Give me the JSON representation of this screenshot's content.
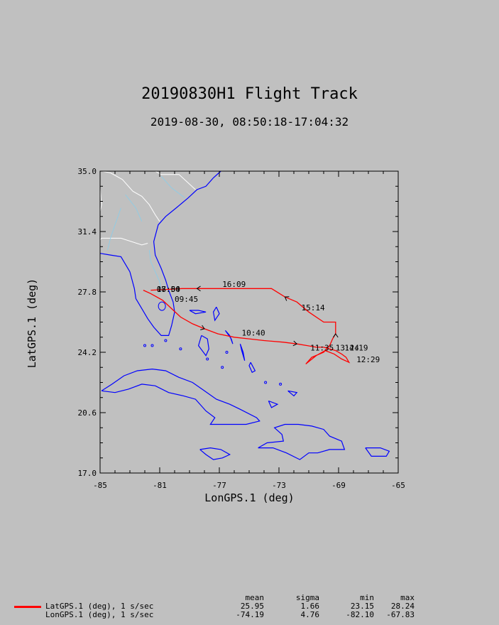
{
  "title": "20190830H1 Flight Track",
  "subtitle": "2019-08-30, 08:50:18-17:04:32",
  "colors": {
    "background": "#c0c0c0",
    "track": "#ff0000",
    "coast": "#0000ff",
    "border": "#ffffff",
    "rivers": "#87ceeb"
  },
  "chart_data": {
    "type": "line",
    "title": "20190830H1 Flight Track",
    "subtitle": "2019-08-30, 08:50:18-17:04:32",
    "xlabel": "LonGPS.1 (deg)",
    "ylabel": "LatGPS.1 (deg)",
    "xlim": [
      -85,
      -65
    ],
    "ylim": [
      17.0,
      35.0
    ],
    "xticks": [
      "-85",
      "-81",
      "-77",
      "-73",
      "-69",
      "-65"
    ],
    "yticks": [
      "17.0",
      "20.6",
      "24.2",
      "27.8",
      "31.4",
      "35.0"
    ],
    "series": [
      {
        "name": "LatGPS.1 (deg), 1 s/sec",
        "x": [
          -82.1,
          -81.6,
          -80.8,
          -80.2,
          -79.6,
          -78.8,
          -78.0,
          -77.1,
          -76.0,
          -75.0,
          -74.0,
          -72.7,
          -71.8,
          -71.1,
          -70.5,
          -70.0,
          -69.6,
          -69.2,
          -68.8,
          -68.5,
          -68.3,
          -68.8,
          -69.3,
          -69.9,
          -70.5,
          -71.2,
          -70.8,
          -70.0,
          -69.6,
          -69.4,
          -69.2,
          -69.2,
          -69.2,
          -70.0,
          -71.0,
          -71.8,
          -72.6,
          -73.5,
          -74.3,
          -75.5,
          -77.0,
          -78.5,
          -79.5,
          -80.5,
          -81.6
        ],
        "y": [
          27.9,
          27.7,
          27.3,
          26.8,
          26.3,
          25.9,
          25.6,
          25.3,
          25.1,
          25.0,
          24.9,
          24.8,
          24.7,
          24.6,
          24.5,
          24.5,
          24.4,
          24.3,
          24.1,
          23.9,
          23.6,
          23.8,
          24.1,
          24.3,
          24.0,
          23.5,
          23.9,
          24.2,
          24.6,
          25.0,
          25.3,
          25.8,
          26.0,
          26.0,
          26.6,
          27.2,
          27.5,
          28.0,
          28.0,
          28.0,
          28.0,
          28.0,
          28.0,
          27.95,
          27.9
        ]
      }
    ],
    "annotations": [
      {
        "text": "16:09",
        "x": -76.8,
        "y": 28.1
      },
      {
        "text": "15:14",
        "x": -71.5,
        "y": 26.7
      },
      {
        "text": "09:45",
        "x": -80.0,
        "y": 27.2
      },
      {
        "text": "10:40",
        "x": -75.5,
        "y": 25.2
      },
      {
        "text": "11:35",
        "x": -70.9,
        "y": 24.3
      },
      {
        "text": "13:24",
        "x": -69.2,
        "y": 24.3
      },
      {
        "text": "14:19",
        "x": -68.6,
        "y": 24.3
      },
      {
        "text": "12:29",
        "x": -67.8,
        "y": 23.6
      },
      {
        "text": "08:50",
        "x": -81.2,
        "y": 27.8
      },
      {
        "text": "17:04",
        "x": -81.2,
        "y": 27.8
      }
    ]
  },
  "stats": {
    "headers": [
      "mean",
      "sigma",
      "min",
      "max"
    ],
    "rows": [
      {
        "label": "LatGPS.1 (deg), 1 s/sec",
        "mean": "25.95",
        "sigma": "1.66",
        "min": "23.15",
        "max": "28.24"
      },
      {
        "label": "LonGPS.1 (deg), 1 s/sec",
        "mean": "-74.19",
        "sigma": "4.76",
        "min": "-82.10",
        "max": "-67.83"
      }
    ]
  }
}
